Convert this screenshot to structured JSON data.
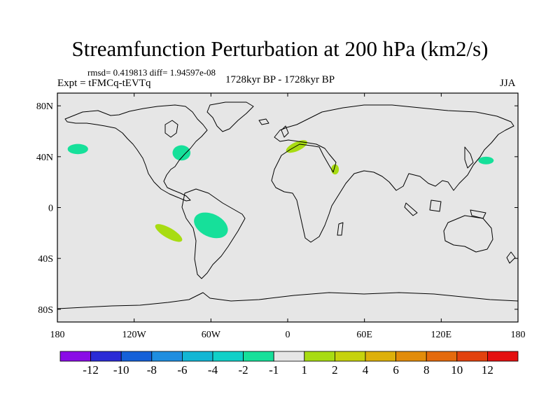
{
  "chart_data": {
    "type": "contour-map",
    "title": "Streamfunction Perturbation at 200 hPa (km2/s)",
    "stats_label": "rmsd= 0.419813 diff= 1.94597e-08",
    "left_label": "Expt = tFMCq-tEVTq",
    "center_label": "1728kyr BP - 1728kyr BP",
    "right_label": "JJA",
    "lon_range": [
      -180,
      180
    ],
    "lat_range": [
      -90,
      90
    ],
    "x_ticks": [
      {
        "value": -180,
        "label": "180"
      },
      {
        "value": -120,
        "label": "120W"
      },
      {
        "value": -60,
        "label": "60W"
      },
      {
        "value": 0,
        "label": "0"
      },
      {
        "value": 60,
        "label": "60E"
      },
      {
        "value": 120,
        "label": "120E"
      },
      {
        "value": 180,
        "label": "180"
      }
    ],
    "y_ticks": [
      {
        "value": 80,
        "label": "80N"
      },
      {
        "value": 40,
        "label": "40N"
      },
      {
        "value": 0,
        "label": "0"
      },
      {
        "value": -40,
        "label": "40S"
      },
      {
        "value": -80,
        "label": "80S"
      }
    ],
    "colorbar": {
      "colors": [
        "#8a0ce6",
        "#2b2bd6",
        "#1560d8",
        "#1f8ee0",
        "#12b6d4",
        "#10d0c8",
        "#16e09a",
        "#e6e6e6",
        "#a8dc12",
        "#c6d20c",
        "#ddb00a",
        "#e28c0a",
        "#e46a0c",
        "#e2420e",
        "#e41010"
      ],
      "labels": [
        "-12",
        "-10",
        "-8",
        "-6",
        "-4",
        "-2",
        "-1",
        "1",
        "2",
        "4",
        "6",
        "8",
        "10",
        "12"
      ]
    },
    "anomalies": [
      {
        "name": "north-pacific-negative",
        "lon": -164,
        "lat": 46,
        "rlon": 8,
        "rlat": 4,
        "rot": 0,
        "level": -1
      },
      {
        "name": "great-lakes-negative",
        "lon": -83,
        "lat": 43,
        "rlon": 7,
        "rlat": 6,
        "rot": 0,
        "level": -1
      },
      {
        "name": "europe-positive",
        "lon": 7,
        "lat": 48,
        "rlon": 9,
        "rlat": 3.5,
        "rot": -25,
        "level": 1
      },
      {
        "name": "middle-east-positive",
        "lon": 37,
        "lat": 30,
        "rlon": 3,
        "rlat": 4,
        "rot": 0,
        "level": 1
      },
      {
        "name": "japan-east-negative",
        "lon": 155,
        "lat": 37,
        "rlon": 6,
        "rlat": 3,
        "rot": 0,
        "level": -1
      },
      {
        "name": "south-america-negative",
        "lon": -60,
        "lat": -14,
        "rlon": 14,
        "rlat": 9,
        "rot": 25,
        "level": -1
      },
      {
        "name": "south-pacific-positive",
        "lon": -93,
        "lat": -20,
        "rlon": 12,
        "rlat": 4,
        "rot": 30,
        "level": 1
      }
    ]
  }
}
